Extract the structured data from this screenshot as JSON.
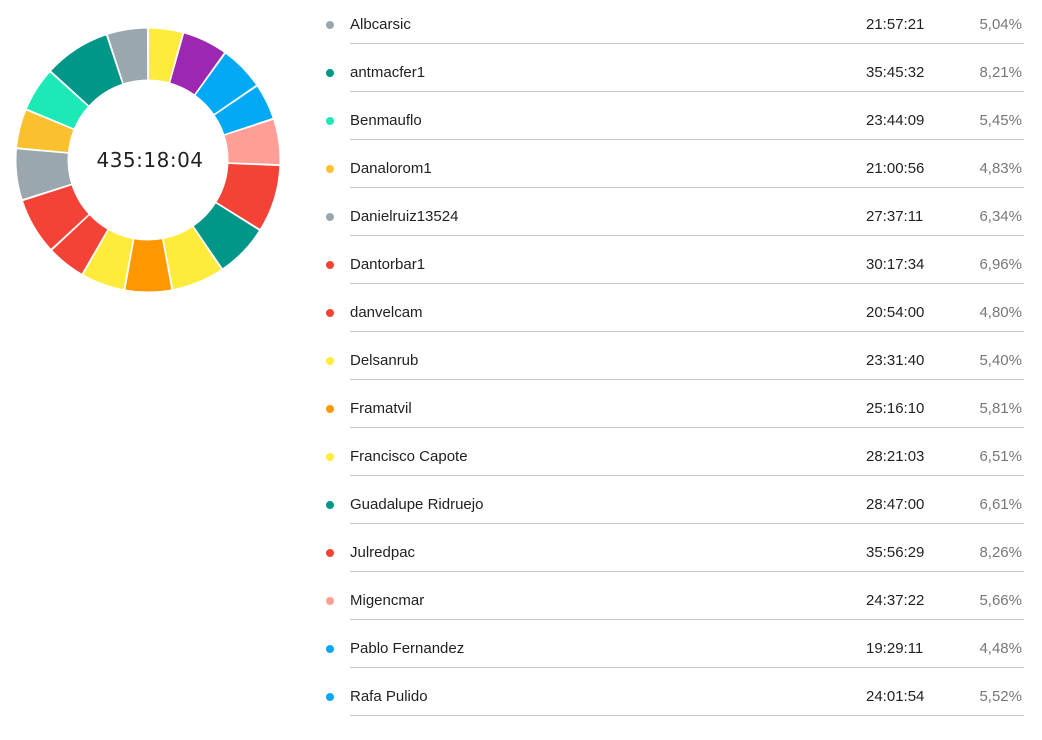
{
  "chart_data": {
    "type": "pie",
    "variant": "donut",
    "center_label": "435:18:04",
    "series": [
      {
        "name": "Albcarsic",
        "time": "21:57:21",
        "percent": "5,04%",
        "value": 5.04,
        "color": "#9aa7ae"
      },
      {
        "name": "antmacfer1",
        "time": "35:45:32",
        "percent": "8,21%",
        "value": 8.21,
        "color": "#009688"
      },
      {
        "name": "Benmauflo",
        "time": "23:44:09",
        "percent": "5,45%",
        "value": 5.45,
        "color": "#1de9b6"
      },
      {
        "name": "Danalorom1",
        "time": "21:00:56",
        "percent": "4,83%",
        "value": 4.83,
        "color": "#fbc02d"
      },
      {
        "name": "Danielruiz13524",
        "time": "27:37:11",
        "percent": "6,34%",
        "value": 6.34,
        "color": "#9aa7ae"
      },
      {
        "name": "Dantorbar1",
        "time": "30:17:34",
        "percent": "6,96%",
        "value": 6.96,
        "color": "#f44336"
      },
      {
        "name": "danvelcam",
        "time": "20:54:00",
        "percent": "4,80%",
        "value": 4.8,
        "color": "#f44336"
      },
      {
        "name": "Delsanrub",
        "time": "23:31:40",
        "percent": "5,40%",
        "value": 5.4,
        "color": "#ffeb3b"
      },
      {
        "name": "Framatvil",
        "time": "25:16:10",
        "percent": "5,81%",
        "value": 5.81,
        "color": "#ff9800"
      },
      {
        "name": "Francisco Capote",
        "time": "28:21:03",
        "percent": "6,51%",
        "value": 6.51,
        "color": "#ffeb3b"
      },
      {
        "name": "Guadalupe Ridruejo",
        "time": "28:47:00",
        "percent": "6,61%",
        "value": 6.61,
        "color": "#009688"
      },
      {
        "name": "Julredpac",
        "time": "35:56:29",
        "percent": "8,26%",
        "value": 8.26,
        "color": "#f44336"
      },
      {
        "name": "Migencmar",
        "time": "24:37:22",
        "percent": "5,66%",
        "value": 5.66,
        "color": "#ff9e96"
      },
      {
        "name": "Pablo Fernandez",
        "time": "19:29:11",
        "percent": "4,48%",
        "value": 4.48,
        "color": "#03a9f4"
      },
      {
        "name": "Rafa Pulido",
        "time": "24:01:54",
        "percent": "5,52%",
        "value": 5.52,
        "color": "#03a9f4"
      }
    ],
    "hidden_segments": [
      {
        "value": 5.6,
        "color": "#9c27b0"
      },
      {
        "value": 4.3,
        "color": "#ffeb3b"
      }
    ],
    "legend_placement": "right"
  }
}
